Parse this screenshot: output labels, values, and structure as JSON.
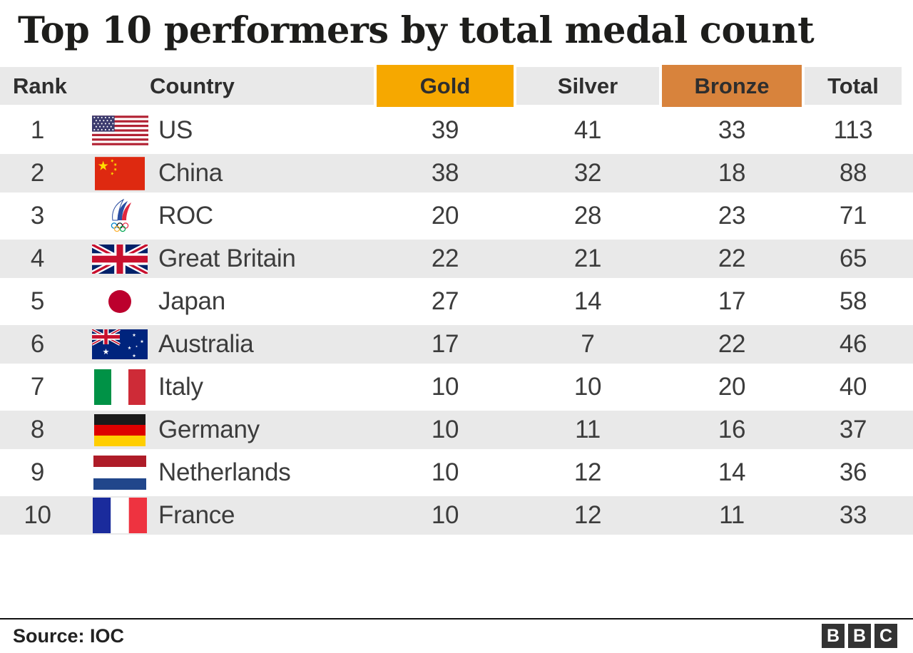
{
  "title": "Top 10 performers by total medal count",
  "header": {
    "rank": "Rank",
    "country": "Country",
    "gold": "Gold",
    "silver": "Silver",
    "bronze": "Bronze",
    "total": "Total"
  },
  "colors": {
    "gold_header": "#F6A800",
    "bronze_header": "#D8833C",
    "stripe": "#E9E9E9",
    "logo_bg": "#333333"
  },
  "rows": [
    {
      "rank": "1",
      "flag": "us",
      "country": "US",
      "gold": "39",
      "silver": "41",
      "bronze": "33",
      "total": "113"
    },
    {
      "rank": "2",
      "flag": "cn",
      "country": "China",
      "gold": "38",
      "silver": "32",
      "bronze": "18",
      "total": "88"
    },
    {
      "rank": "3",
      "flag": "roc",
      "country": "ROC",
      "gold": "20",
      "silver": "28",
      "bronze": "23",
      "total": "71"
    },
    {
      "rank": "4",
      "flag": "gb",
      "country": "Great Britain",
      "gold": "22",
      "silver": "21",
      "bronze": "22",
      "total": "65"
    },
    {
      "rank": "5",
      "flag": "jp",
      "country": "Japan",
      "gold": "27",
      "silver": "14",
      "bronze": "17",
      "total": "58"
    },
    {
      "rank": "6",
      "flag": "au",
      "country": "Australia",
      "gold": "17",
      "silver": "7",
      "bronze": "22",
      "total": "46"
    },
    {
      "rank": "7",
      "flag": "it",
      "country": "Italy",
      "gold": "10",
      "silver": "10",
      "bronze": "20",
      "total": "40"
    },
    {
      "rank": "8",
      "flag": "de",
      "country": "Germany",
      "gold": "10",
      "silver": "11",
      "bronze": "16",
      "total": "37"
    },
    {
      "rank": "9",
      "flag": "nl",
      "country": "Netherlands",
      "gold": "10",
      "silver": "12",
      "bronze": "14",
      "total": "36"
    },
    {
      "rank": "10",
      "flag": "fr",
      "country": "France",
      "gold": "10",
      "silver": "12",
      "bronze": "11",
      "total": "33"
    }
  ],
  "footer": {
    "source": "Source: IOC",
    "logo_letters": [
      "B",
      "B",
      "C"
    ]
  },
  "chart_data": {
    "type": "table",
    "title": "Top 10 performers by total medal count",
    "columns": [
      "Rank",
      "Country",
      "Gold",
      "Silver",
      "Bronze",
      "Total"
    ],
    "rows": [
      [
        1,
        "US",
        39,
        41,
        33,
        113
      ],
      [
        2,
        "China",
        38,
        32,
        18,
        88
      ],
      [
        3,
        "ROC",
        20,
        28,
        23,
        71
      ],
      [
        4,
        "Great Britain",
        22,
        21,
        22,
        65
      ],
      [
        5,
        "Japan",
        27,
        14,
        17,
        58
      ],
      [
        6,
        "Australia",
        17,
        7,
        22,
        46
      ],
      [
        7,
        "Italy",
        10,
        10,
        20,
        40
      ],
      [
        8,
        "Germany",
        10,
        11,
        16,
        37
      ],
      [
        9,
        "Netherlands",
        10,
        12,
        14,
        36
      ],
      [
        10,
        "France",
        10,
        12,
        11,
        33
      ]
    ],
    "highlighted_columns": {
      "Gold": "#F6A800",
      "Bronze": "#D8833C"
    },
    "source": "Source: IOC"
  }
}
